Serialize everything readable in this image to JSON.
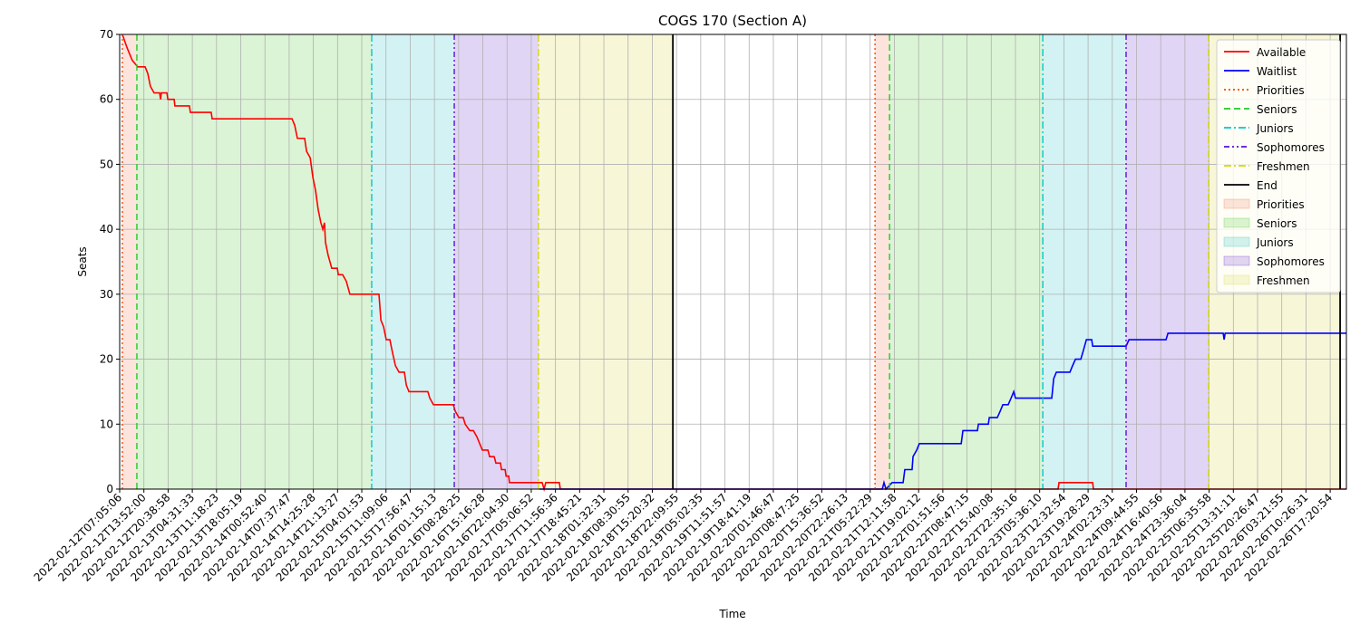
{
  "chart_data": {
    "type": "line",
    "title": "COGS 170 (Section A)",
    "x_label": "Time",
    "y_label": "Seats",
    "xlim": [
      0,
      50.67
    ],
    "ylim": [
      0,
      70
    ],
    "yticks": [
      0,
      10,
      20,
      30,
      40,
      50,
      60,
      70
    ],
    "grid": true,
    "legend": "upper right",
    "xticks": [
      {
        "value": 0,
        "label": "2022-02-12T07:05:06"
      },
      {
        "value": 1,
        "label": "2022-02-12T13:52:00"
      },
      {
        "value": 2,
        "label": "2022-02-12T20:38:58"
      },
      {
        "value": 3,
        "label": "2022-02-13T04:31:33"
      },
      {
        "value": 4,
        "label": "2022-02-13T11:18:23"
      },
      {
        "value": 5,
        "label": "2022-02-13T18:05:19"
      },
      {
        "value": 6,
        "label": "2022-02-14T00:52:40"
      },
      {
        "value": 7,
        "label": "2022-02-14T07:37:47"
      },
      {
        "value": 8,
        "label": "2022-02-14T14:25:28"
      },
      {
        "value": 9,
        "label": "2022-02-14T21:13:27"
      },
      {
        "value": 10,
        "label": "2022-02-15T04:01:53"
      },
      {
        "value": 11,
        "label": "2022-02-15T11:09:06"
      },
      {
        "value": 12,
        "label": "2022-02-15T17:56:47"
      },
      {
        "value": 13,
        "label": "2022-02-16T01:15:13"
      },
      {
        "value": 14,
        "label": "2022-02-16T08:28:25"
      },
      {
        "value": 15,
        "label": "2022-02-16T15:16:28"
      },
      {
        "value": 16,
        "label": "2022-02-16T22:04:30"
      },
      {
        "value": 17,
        "label": "2022-02-17T05:06:52"
      },
      {
        "value": 18,
        "label": "2022-02-17T11:56:36"
      },
      {
        "value": 19,
        "label": "2022-02-17T18:45:21"
      },
      {
        "value": 20,
        "label": "2022-02-18T01:32:31"
      },
      {
        "value": 21,
        "label": "2022-02-18T08:30:55"
      },
      {
        "value": 22,
        "label": "2022-02-18T15:20:32"
      },
      {
        "value": 23,
        "label": "2022-02-18T22:09:55"
      },
      {
        "value": 24,
        "label": "2022-02-19T05:02:35"
      },
      {
        "value": 25,
        "label": "2022-02-19T11:51:57"
      },
      {
        "value": 26,
        "label": "2022-02-19T18:41:19"
      },
      {
        "value": 27,
        "label": "2022-02-20T01:46:47"
      },
      {
        "value": 28,
        "label": "2022-02-20T08:47:25"
      },
      {
        "value": 29,
        "label": "2022-02-20T15:36:52"
      },
      {
        "value": 30,
        "label": "2022-02-20T22:26:13"
      },
      {
        "value": 31,
        "label": "2022-02-21T05:22:29"
      },
      {
        "value": 32,
        "label": "2022-02-21T12:11:58"
      },
      {
        "value": 33,
        "label": "2022-02-21T19:02:12"
      },
      {
        "value": 34,
        "label": "2022-02-22T01:51:56"
      },
      {
        "value": 35,
        "label": "2022-02-22T08:47:15"
      },
      {
        "value": 36,
        "label": "2022-02-22T15:40:08"
      },
      {
        "value": 37,
        "label": "2022-02-22T22:35:16"
      },
      {
        "value": 38,
        "label": "2022-02-23T05:36:10"
      },
      {
        "value": 39,
        "label": "2022-02-23T12:32:54"
      },
      {
        "value": 40,
        "label": "2022-02-23T19:28:29"
      },
      {
        "value": 41,
        "label": "2022-02-24T02:23:31"
      },
      {
        "value": 42,
        "label": "2022-02-24T09:44:55"
      },
      {
        "value": 43,
        "label": "2022-02-24T16:40:56"
      },
      {
        "value": 44,
        "label": "2022-02-24T23:36:04"
      },
      {
        "value": 45,
        "label": "2022-02-25T06:35:58"
      },
      {
        "value": 46,
        "label": "2022-02-25T13:31:11"
      },
      {
        "value": 47,
        "label": "2022-02-25T20:26:47"
      },
      {
        "value": 48,
        "label": "2022-02-26T03:21:55"
      },
      {
        "value": 49,
        "label": "2022-02-26T10:26:31"
      },
      {
        "value": 50,
        "label": "2022-02-26T17:20:54"
      }
    ],
    "series": [
      {
        "name": "Available",
        "color": "#ff0000",
        "x": [
          0.11,
          0.3,
          0.41,
          0.52,
          0.75,
          1.05,
          1.16,
          1.27,
          1.42,
          1.65,
          1.69,
          1.72,
          1.95,
          1.99,
          2.25,
          2.28,
          2.88,
          2.92,
          3.78,
          3.82,
          7.12,
          7.23,
          7.34,
          7.64,
          7.72,
          7.87,
          7.98,
          8.09,
          8.2,
          8.31,
          8.39,
          8.46,
          8.5,
          8.61,
          8.76,
          8.99,
          9.03,
          9.21,
          9.36,
          9.51,
          10.71,
          10.79,
          10.9,
          11.01,
          11.16,
          11.27,
          11.39,
          11.54,
          11.76,
          11.84,
          11.95,
          12.73,
          12.81,
          12.96,
          13.78,
          13.86,
          14.01,
          14.19,
          14.27,
          14.46,
          14.61,
          14.76,
          14.87,
          14.98,
          15.21,
          15.28,
          15.47,
          15.54,
          15.73,
          15.77,
          15.92,
          15.96,
          16.07,
          16.1,
          17.45,
          17.53,
          17.6,
          18.16,
          18.2,
          38.76,
          38.8,
          40.19,
          40.22,
          50.67
        ],
        "values": [
          70,
          68,
          67,
          66,
          65,
          65,
          64,
          62,
          61,
          61,
          60,
          61,
          61,
          60,
          60,
          59,
          59,
          58,
          58,
          57,
          57,
          56,
          54,
          54,
          52,
          51,
          48,
          46,
          43,
          41,
          40,
          41,
          38,
          36,
          34,
          34,
          33,
          33,
          32,
          30,
          30,
          26,
          25,
          23,
          23,
          21,
          19,
          18,
          18,
          16,
          15,
          15,
          14,
          13,
          13,
          12,
          11,
          11,
          10,
          9,
          9,
          8,
          7,
          6,
          6,
          5,
          5,
          4,
          4,
          3,
          3,
          2,
          2,
          1,
          1,
          0,
          1,
          1,
          0,
          0,
          1,
          1,
          0,
          0
        ]
      },
      {
        "name": "Waitlist",
        "color": "#0000ff",
        "x": [
          17.34,
          31.5,
          31.57,
          31.65,
          31.91,
          32.36,
          32.43,
          32.73,
          32.77,
          32.92,
          33.03,
          34.76,
          34.83,
          35.43,
          35.47,
          35.88,
          35.92,
          36.25,
          36.37,
          36.48,
          36.7,
          36.82,
          36.93,
          37.0,
          38.5,
          38.58,
          38.69,
          39.25,
          39.36,
          39.48,
          39.7,
          39.78,
          39.93,
          40.15,
          40.19,
          41.57,
          41.69,
          43.22,
          43.3,
          45.58,
          45.62,
          45.66,
          50.67
        ],
        "values": [
          0,
          0,
          1,
          0,
          1,
          1,
          3,
          3,
          5,
          6,
          7,
          7,
          9,
          9,
          10,
          10,
          11,
          11,
          12,
          13,
          13,
          14,
          15,
          14,
          14,
          17,
          18,
          18,
          19,
          20,
          20,
          21,
          23,
          23,
          22,
          22,
          23,
          23,
          24,
          24,
          23,
          24,
          24
        ]
      }
    ],
    "events": [
      {
        "name": "Priorities",
        "color": "#ff4500",
        "dash": "dotted",
        "x": [
          0.11,
          31.2
        ]
      },
      {
        "name": "Seniors",
        "color": "#22cc22",
        "dash": "dashed",
        "x": [
          0.71,
          31.8
        ]
      },
      {
        "name": "Juniors",
        "color": "#00c8d0",
        "dash": "dashdot",
        "x": [
          10.41,
          38.13
        ]
      },
      {
        "name": "Sophomores",
        "color": "#5a10d8",
        "dash": "dashdotdot",
        "x": [
          13.82,
          41.57
        ]
      },
      {
        "name": "Freshmen",
        "color": "#d8d800",
        "dash": "dashdot",
        "x": [
          17.3,
          44.98
        ]
      },
      {
        "name": "End",
        "color": "#000000",
        "dash": "solid",
        "x": [
          22.85,
          50.41
        ]
      }
    ],
    "spans": [
      {
        "name": "Priorities",
        "color": "#ee7755",
        "ranges": [
          [
            0.11,
            0.71
          ],
          [
            31.2,
            31.8
          ]
        ]
      },
      {
        "name": "Seniors",
        "color": "#4cca2e",
        "ranges": [
          [
            0.71,
            10.41
          ],
          [
            31.8,
            38.13
          ]
        ]
      },
      {
        "name": "Juniors",
        "color": "#25c0c4",
        "ranges": [
          [
            10.41,
            13.82
          ],
          [
            38.13,
            41.57
          ]
        ]
      },
      {
        "name": "Sophomores",
        "color": "#6a2fcf",
        "ranges": [
          [
            13.82,
            17.3
          ],
          [
            41.57,
            44.98
          ]
        ]
      },
      {
        "name": "Freshmen",
        "color": "#d8d83a",
        "ranges": [
          [
            17.3,
            22.85
          ],
          [
            44.98,
            50.41
          ]
        ]
      }
    ]
  }
}
